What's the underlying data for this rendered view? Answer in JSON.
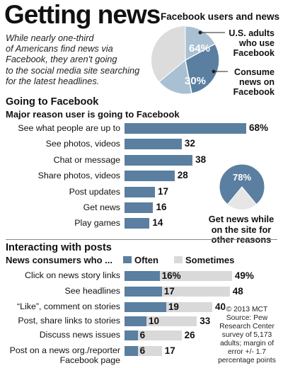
{
  "header": {
    "title": "Getting news",
    "intro_lines": [
      "While nearly one-third",
      "of Americans find news via",
      "Facebook, they aren't going",
      "to the social media site searching",
      "for the latest headlines."
    ]
  },
  "colors": {
    "dark": "#5a7fa0",
    "light": "#a9c0d3",
    "grey": "#d9d9d9",
    "donut_grey": "#dcdcdc"
  },
  "chart_data": [
    {
      "type": "pie",
      "title": "Facebook users and news",
      "slices": [
        {
          "name": "U.S. adults who use Facebook",
          "value": 64,
          "label": "64%"
        },
        {
          "name": "Consume news on Facebook",
          "value": 30,
          "label": "30%"
        }
      ],
      "callouts": [
        [
          "U.S. adults",
          "who use",
          "Facebook"
        ],
        [
          "Consume",
          "news on",
          "Facebook"
        ]
      ]
    },
    {
      "type": "bar",
      "section_title": "Going to Facebook",
      "title": "Major reason user is going to Facebook",
      "categories": [
        "See what people are up to",
        "See photos, videos",
        "Chat or message",
        "Share photos, videos",
        "Post updates",
        "Get news",
        "Play games"
      ],
      "values": [
        68,
        32,
        38,
        28,
        17,
        16,
        14
      ],
      "value_labels": [
        "68%",
        "32",
        "38",
        "28",
        "17",
        "16",
        "14"
      ],
      "xlim": [
        0,
        70
      ]
    },
    {
      "type": "pie",
      "slices": [
        {
          "name": "Get news while on the site for other reasons",
          "value": 78,
          "label": "78%"
        }
      ],
      "note_lines": [
        "Get news while",
        "on the site for",
        "other reasons"
      ]
    },
    {
      "type": "bar",
      "section_title": "Interacting with posts",
      "title": "News consumers who ...",
      "legend": [
        "Often",
        "Sometimes"
      ],
      "categories": [
        "Click on news story links",
        "See headlines",
        "“Like”, comment on stories",
        "Post, share links to stories",
        "Discuss news issues",
        "Post on a news org./reporter Facebook page"
      ],
      "category_lines": [
        [
          "Click on news story links"
        ],
        [
          "See headlines"
        ],
        [
          "“Like”, comment on stories"
        ],
        [
          "Post, share links to stories"
        ],
        [
          "Discuss news issues"
        ],
        [
          "Post on a news org./reporter",
          "Facebook page"
        ]
      ],
      "series": [
        {
          "name": "Often",
          "values": [
            16,
            17,
            19,
            10,
            6,
            6
          ],
          "labels": [
            "16%",
            "17",
            "19",
            "10",
            "6",
            "6"
          ]
        },
        {
          "name": "Sometimes",
          "values": [
            49,
            48,
            40,
            33,
            26,
            17
          ],
          "labels": [
            "49%",
            "48",
            "40",
            "33",
            "26",
            "17"
          ]
        }
      ],
      "xlim": [
        0,
        50
      ]
    }
  ],
  "source": {
    "lines": [
      "© 2013 MCT",
      "Source: Pew",
      "Research Center",
      "survey of 5,173",
      "adults; margin of",
      "error +/- 1.7",
      "percentage points"
    ]
  }
}
